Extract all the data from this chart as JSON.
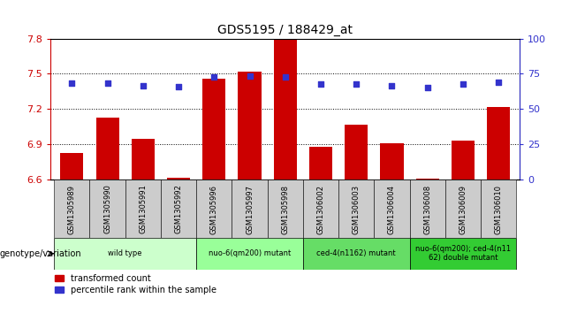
{
  "title": "GDS5195 / 188429_at",
  "samples": [
    "GSM1305989",
    "GSM1305990",
    "GSM1305991",
    "GSM1305992",
    "GSM1305996",
    "GSM1305997",
    "GSM1305998",
    "GSM1306002",
    "GSM1306003",
    "GSM1306004",
    "GSM1306008",
    "GSM1306009",
    "GSM1306010"
  ],
  "bar_values": [
    6.83,
    7.13,
    6.95,
    6.62,
    7.46,
    7.52,
    7.8,
    6.88,
    7.07,
    6.91,
    6.61,
    6.93,
    7.22
  ],
  "percentile_values": [
    7.42,
    7.42,
    7.4,
    7.39,
    7.47,
    7.48,
    7.47,
    7.41,
    7.41,
    7.4,
    7.38,
    7.41,
    7.43
  ],
  "ymin": 6.6,
  "ymax": 7.8,
  "yticks_left": [
    6.6,
    6.9,
    7.2,
    7.5,
    7.8
  ],
  "yticks_right": [
    0,
    25,
    50,
    75,
    100
  ],
  "bar_color": "#cc0000",
  "dot_color": "#3333cc",
  "groups": [
    {
      "label": "wild type",
      "start": 0,
      "end": 3,
      "color": "#ccffcc"
    },
    {
      "label": "nuo-6(qm200) mutant",
      "start": 4,
      "end": 6,
      "color": "#99ff99"
    },
    {
      "label": "ced-4(n1162) mutant",
      "start": 7,
      "end": 9,
      "color": "#66dd66"
    },
    {
      "label": "nuo-6(qm200); ced-4(n11\n62) double mutant",
      "start": 10,
      "end": 12,
      "color": "#33cc33"
    }
  ],
  "legend_red": "transformed count",
  "legend_blue": "percentile rank within the sample",
  "genotype_label": "genotype/variation",
  "xticklabel_bg": "#cccccc",
  "xticklabel_fontsize": 6.0,
  "bar_width": 0.65
}
